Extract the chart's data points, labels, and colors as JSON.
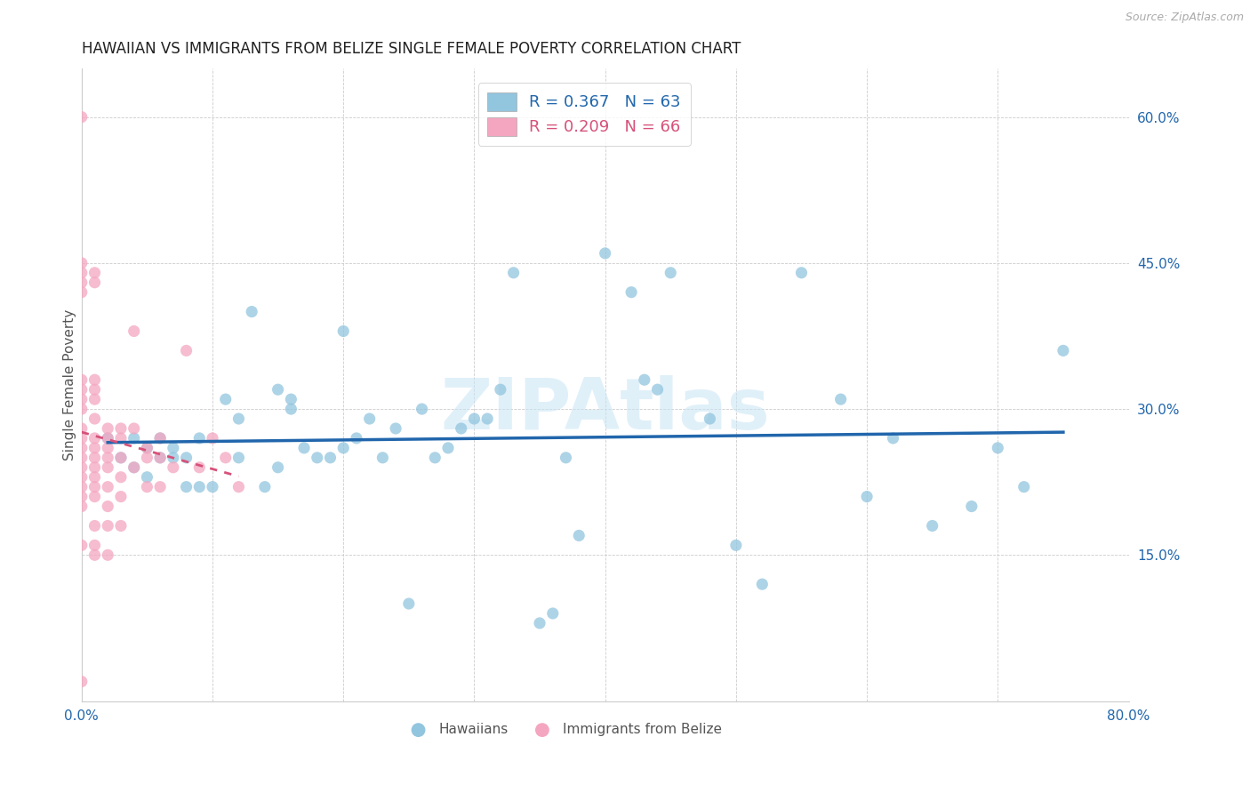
{
  "title": "HAWAIIAN VS IMMIGRANTS FROM BELIZE SINGLE FEMALE POVERTY CORRELATION CHART",
  "source": "Source: ZipAtlas.com",
  "ylabel": "Single Female Poverty",
  "xlim": [
    0,
    0.8
  ],
  "ylim": [
    0,
    0.65
  ],
  "xtick_positions": [
    0.0,
    0.1,
    0.2,
    0.3,
    0.4,
    0.5,
    0.6,
    0.7,
    0.8
  ],
  "xtick_labels": [
    "0.0%",
    "",
    "",
    "",
    "",
    "",
    "",
    "",
    "80.0%"
  ],
  "ytick_vals": [
    0.6,
    0.45,
    0.3,
    0.15
  ],
  "ytick_labels": [
    "60.0%",
    "45.0%",
    "30.0%",
    "15.0%"
  ],
  "legend_r1": "R = 0.367",
  "legend_n1": "N = 63",
  "legend_r2": "R = 0.209",
  "legend_n2": "N = 66",
  "color_hawaiian": "#92c5de",
  "color_belize": "#f4a6c0",
  "color_trend_hawaiian": "#2166ac",
  "color_trend_belize": "#d6527a",
  "watermark": "ZIPAtlas",
  "hawaiian_x": [
    0.02,
    0.03,
    0.04,
    0.04,
    0.05,
    0.05,
    0.06,
    0.06,
    0.07,
    0.07,
    0.08,
    0.08,
    0.09,
    0.09,
    0.1,
    0.11,
    0.12,
    0.12,
    0.13,
    0.14,
    0.15,
    0.15,
    0.16,
    0.16,
    0.17,
    0.18,
    0.19,
    0.2,
    0.2,
    0.21,
    0.22,
    0.23,
    0.24,
    0.25,
    0.26,
    0.27,
    0.28,
    0.29,
    0.3,
    0.31,
    0.32,
    0.33,
    0.35,
    0.36,
    0.37,
    0.38,
    0.4,
    0.42,
    0.43,
    0.44,
    0.45,
    0.48,
    0.5,
    0.52,
    0.55,
    0.58,
    0.6,
    0.62,
    0.65,
    0.68,
    0.7,
    0.72,
    0.75
  ],
  "hawaiian_y": [
    0.27,
    0.25,
    0.24,
    0.27,
    0.26,
    0.23,
    0.25,
    0.27,
    0.25,
    0.26,
    0.22,
    0.25,
    0.22,
    0.27,
    0.22,
    0.31,
    0.25,
    0.29,
    0.4,
    0.22,
    0.24,
    0.32,
    0.3,
    0.31,
    0.26,
    0.25,
    0.25,
    0.26,
    0.38,
    0.27,
    0.29,
    0.25,
    0.28,
    0.1,
    0.3,
    0.25,
    0.26,
    0.28,
    0.29,
    0.29,
    0.32,
    0.44,
    0.08,
    0.09,
    0.25,
    0.17,
    0.46,
    0.42,
    0.33,
    0.32,
    0.44,
    0.29,
    0.16,
    0.12,
    0.44,
    0.31,
    0.21,
    0.27,
    0.18,
    0.2,
    0.26,
    0.22,
    0.36
  ],
  "belize_x": [
    0.0,
    0.0,
    0.0,
    0.0,
    0.0,
    0.0,
    0.0,
    0.0,
    0.0,
    0.0,
    0.0,
    0.0,
    0.0,
    0.0,
    0.0,
    0.0,
    0.0,
    0.0,
    0.0,
    0.0,
    0.01,
    0.01,
    0.01,
    0.01,
    0.01,
    0.01,
    0.01,
    0.01,
    0.01,
    0.01,
    0.01,
    0.01,
    0.01,
    0.01,
    0.01,
    0.01,
    0.02,
    0.02,
    0.02,
    0.02,
    0.02,
    0.02,
    0.02,
    0.02,
    0.02,
    0.03,
    0.03,
    0.03,
    0.03,
    0.03,
    0.03,
    0.04,
    0.04,
    0.04,
    0.05,
    0.05,
    0.05,
    0.06,
    0.06,
    0.06,
    0.07,
    0.08,
    0.09,
    0.1,
    0.11,
    0.12
  ],
  "belize_y": [
    0.6,
    0.45,
    0.44,
    0.43,
    0.42,
    0.33,
    0.32,
    0.31,
    0.3,
    0.28,
    0.27,
    0.26,
    0.25,
    0.24,
    0.23,
    0.22,
    0.21,
    0.2,
    0.16,
    0.02,
    0.44,
    0.43,
    0.33,
    0.32,
    0.31,
    0.29,
    0.27,
    0.26,
    0.25,
    0.24,
    0.23,
    0.22,
    0.21,
    0.18,
    0.16,
    0.15,
    0.28,
    0.27,
    0.26,
    0.25,
    0.24,
    0.22,
    0.2,
    0.18,
    0.15,
    0.28,
    0.27,
    0.25,
    0.23,
    0.21,
    0.18,
    0.38,
    0.28,
    0.24,
    0.26,
    0.25,
    0.22,
    0.27,
    0.25,
    0.22,
    0.24,
    0.36,
    0.24,
    0.27,
    0.25,
    0.22
  ]
}
